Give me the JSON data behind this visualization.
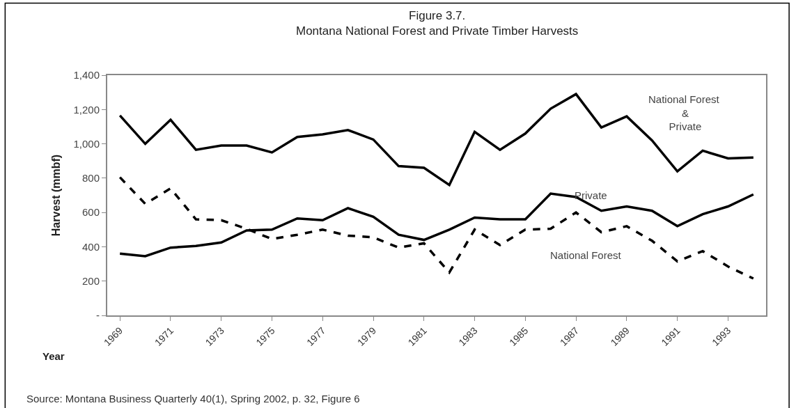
{
  "chart_data": {
    "type": "line",
    "title": "Figure 3.7.",
    "subtitle": "Montana National Forest and Private Timber Harvests",
    "xlabel": "Year",
    "ylabel": "Harvest (mmbf)",
    "categories": [
      "1969",
      null,
      "1971",
      null,
      "1973",
      null,
      "1975",
      null,
      "1977",
      null,
      "1979",
      null,
      "1981",
      null,
      "1983",
      null,
      "1985",
      null,
      "1987",
      null,
      "1989",
      null,
      "1991",
      null,
      "1993",
      null
    ],
    "series": [
      {
        "name": "National Forest & Private",
        "color": "#000000",
        "line_style": "solid",
        "values": [
          1165,
          1000,
          1140,
          965,
          990,
          990,
          950,
          1040,
          1055,
          1080,
          1025,
          870,
          860,
          760,
          1070,
          965,
          1060,
          1205,
          1290,
          1095,
          1160,
          1020,
          840,
          960,
          915,
          920
        ]
      },
      {
        "name": "Private",
        "color": "#000000",
        "line_style": "solid",
        "values": [
          360,
          345,
          395,
          405,
          425,
          495,
          500,
          565,
          555,
          625,
          575,
          470,
          440,
          500,
          570,
          560,
          560,
          710,
          690,
          610,
          635,
          610,
          520,
          590,
          635,
          705
        ]
      },
      {
        "name": "National Forest",
        "color": "#000000",
        "line_style": "dashed",
        "values": [
          805,
          650,
          740,
          560,
          555,
          505,
          445,
          470,
          500,
          465,
          455,
          395,
          420,
          250,
          500,
          410,
          500,
          505,
          600,
          485,
          520,
          435,
          315,
          375,
          285,
          215
        ]
      }
    ],
    "ylim": [
      0,
      1400
    ],
    "yticks": [
      {
        "value": 0,
        "label": "-"
      },
      200,
      400,
      600,
      800,
      {
        "value": 1000,
        "label": "1,000"
      },
      {
        "value": 1200,
        "label": "1,200"
      },
      {
        "value": 1400,
        "label": "1,400"
      }
    ],
    "legend": false,
    "marker": "none",
    "annotations": [
      "Source: Montana Business Quarterly 40(1), Spring 2002, p. 32, Figure 6"
    ]
  }
}
